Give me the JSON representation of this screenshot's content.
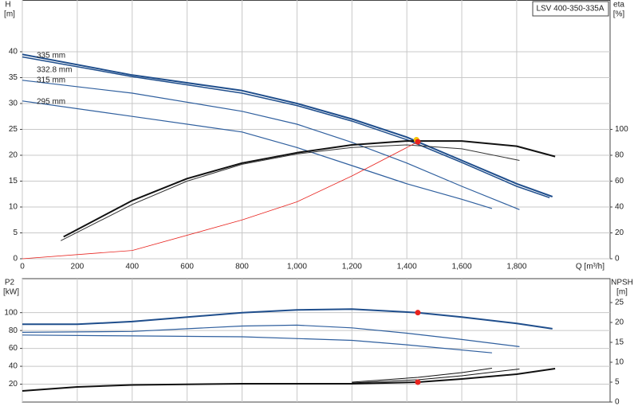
{
  "chart_data": {
    "type": "line",
    "model_label": "LSV 400-350-335A",
    "x_label": "Q [m³/h]",
    "xlim": [
      0,
      2140
    ],
    "xticks": [
      0,
      200,
      400,
      600,
      800,
      {
        "value": 1000,
        "label": "1,000"
      },
      {
        "value": 1200,
        "label": "1,200"
      },
      {
        "value": 1400,
        "label": "1,400"
      },
      {
        "value": 1600,
        "label": "1,600"
      },
      {
        "value": 1800,
        "label": "1,800"
      }
    ],
    "grid": true,
    "head": {
      "y_label": [
        "H",
        "[m]"
      ],
      "ylim": [
        0,
        50
      ],
      "yticks": [
        0,
        5,
        10,
        15,
        20,
        25,
        30,
        35,
        40
      ],
      "y2_label": [
        "eta",
        "[%]"
      ],
      "y2lim": [
        0,
        200
      ],
      "y2ticks": [
        0,
        20,
        40,
        60,
        80,
        100
      ],
      "curves": [
        {
          "label": "335 mm",
          "color": "#1f4e8c",
          "width": 2,
          "q": [
            0,
            400,
            800,
            1000,
            1200,
            1400,
            1600,
            1800,
            1930
          ],
          "h": [
            39.5,
            35.5,
            32.5,
            30,
            27,
            23.5,
            19,
            14.5,
            12
          ]
        },
        {
          "label": "332.8 mm",
          "color": "#1f4e8c",
          "width": 1.5,
          "q": [
            0,
            400,
            800,
            1000,
            1200,
            1400,
            1600,
            1800,
            1920
          ],
          "h": [
            39,
            35.2,
            32,
            29.6,
            26.6,
            23,
            18.6,
            14,
            11.8
          ]
        },
        {
          "label": "315 mm",
          "color": "#2f5f9e",
          "width": 1.2,
          "q": [
            0,
            400,
            800,
            1000,
            1200,
            1400,
            1600,
            1810
          ],
          "h": [
            34.5,
            32,
            28.5,
            26,
            22.5,
            18.5,
            14,
            9.5
          ]
        },
        {
          "label": "295 mm",
          "color": "#2f5f9e",
          "width": 1.2,
          "q": [
            0,
            400,
            800,
            1000,
            1200,
            1400,
            1600,
            1710
          ],
          "h": [
            30.5,
            27.5,
            24.5,
            21.5,
            18,
            14.5,
            11.5,
            9.7
          ]
        }
      ],
      "eta_curves": [
        {
          "color": "#111111",
          "width": 2,
          "q": [
            150,
            400,
            600,
            800,
            1000,
            1200,
            1400,
            1600,
            1800,
            1940
          ],
          "eta": [
            17,
            45,
            62,
            74,
            82,
            88,
            91,
            91,
            87,
            79
          ]
        },
        {
          "color": "#333333",
          "width": 1,
          "q": [
            140,
            400,
            600,
            800,
            1000,
            1200,
            1400,
            1600,
            1810
          ],
          "eta": [
            14,
            42,
            60,
            73,
            81,
            86,
            88,
            85,
            76
          ]
        }
      ],
      "system_curve": {
        "color": "#e8231e",
        "q": [
          0,
          400,
          800,
          1000,
          1200,
          1400,
          1440
        ],
        "h": [
          0,
          1.6,
          7.5,
          11,
          16,
          21.5,
          22.6
        ]
      },
      "eta_point": {
        "color": "#f5c400",
        "q": [
          1435
        ],
        "eta": [
          92
        ]
      },
      "duty_point": {
        "color": "#e8231e",
        "q": [
          1440
        ],
        "h": [
          22.6
        ]
      }
    },
    "power": {
      "y_label": [
        "P2",
        "[kW]"
      ],
      "ylim": [
        0,
        138
      ],
      "yticks": [
        20,
        40,
        60,
        80,
        100
      ],
      "y2_label": [
        "NPSH",
        "[m]"
      ],
      "y2lim": [
        0,
        31
      ],
      "y2ticks": [
        0,
        5,
        10,
        15,
        20,
        25
      ],
      "p2_curves": [
        {
          "color": "#1f4e8c",
          "width": 2,
          "q": [
            0,
            200,
            400,
            800,
            1000,
            1200,
            1440,
            1600,
            1800,
            1930
          ],
          "p2": [
            87,
            87,
            90,
            100,
            103,
            104,
            100,
            95,
            88,
            82
          ]
        },
        {
          "color": "#2f5f9e",
          "width": 1.2,
          "q": [
            0,
            400,
            800,
            1000,
            1200,
            1400,
            1600,
            1810
          ],
          "p2": [
            78,
            79,
            85,
            86,
            83,
            77,
            70,
            62
          ]
        },
        {
          "color": "#2f5f9e",
          "width": 1.2,
          "q": [
            0,
            400,
            800,
            1200,
            1400,
            1710
          ],
          "p2": [
            75,
            74,
            73,
            69,
            64,
            55
          ]
        }
      ],
      "npsh_curves": [
        {
          "color": "#111111",
          "width": 2,
          "q": [
            0,
            200,
            400,
            800,
            1200,
            1440,
            1600,
            1800,
            1940
          ],
          "npsh": [
            2.8,
            3.8,
            4.3,
            4.6,
            4.6,
            5,
            5.8,
            7,
            8.4
          ]
        },
        {
          "color": "#111111",
          "width": 1,
          "q": [
            1200,
            1440,
            1600,
            1810
          ],
          "npsh": [
            4.8,
            5.6,
            6.6,
            8.3
          ]
        },
        {
          "color": "#111111",
          "width": 1,
          "q": [
            1200,
            1440,
            1600,
            1710
          ],
          "npsh": [
            5,
            6.2,
            7.4,
            8.5
          ]
        }
      ],
      "p2_point": {
        "color": "#e8231e",
        "q": [
          1440
        ],
        "p2": [
          100
        ]
      },
      "npsh_point": {
        "color": "#e8231e",
        "q": [
          1440
        ],
        "npsh": [
          5
        ]
      }
    }
  }
}
